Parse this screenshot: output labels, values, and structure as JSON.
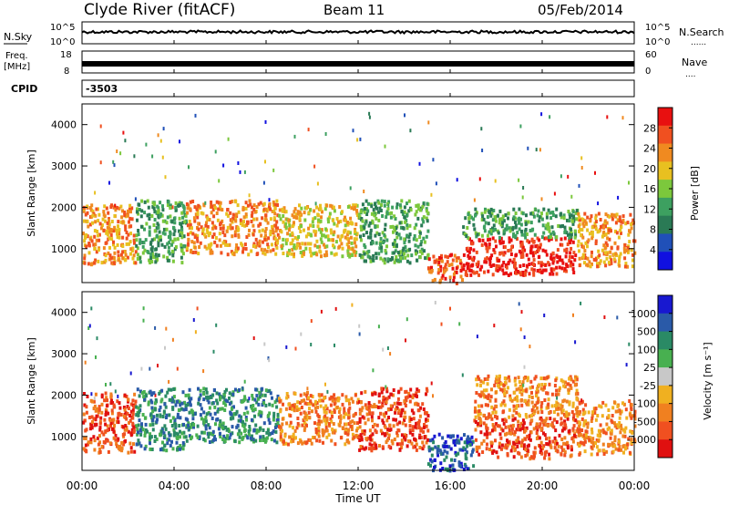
{
  "header": {
    "station": "Clyde River (fitACF)",
    "beam": "Beam 11",
    "date": "05/Feb/2014"
  },
  "nsky_panel": {
    "left_label": "N.Sky",
    "right_label": "N.Search",
    "tick_top": "10^5",
    "tick_bottom": "10^0",
    "right_tick_top": "10^5",
    "right_tick_bottom": "10^0",
    "legend_symbol": "......"
  },
  "freq_panel": {
    "left_label_line1": "Freq.",
    "left_label_line2": "[MHz]",
    "right_label": "Nave",
    "left_ticks": [
      "18",
      "8"
    ],
    "right_ticks": [
      "60",
      "0"
    ],
    "legend_symbol": "....",
    "freq_mhz": 10.5,
    "nave": 32
  },
  "cpid": {
    "label": "CPID",
    "value": "-3503"
  },
  "time_axis": {
    "label": "Time UT",
    "ticks": [
      "00:00",
      "04:00",
      "08:00",
      "12:00",
      "16:00",
      "20:00",
      "00:00"
    ]
  },
  "colors": {
    "power": [
      "#1010e0",
      "#2050b8",
      "#2a7a55",
      "#3da060",
      "#7cc83c",
      "#e8c020",
      "#f08a20",
      "#f05020",
      "#e81010"
    ],
    "velocity": [
      "#1818d0",
      "#2a5aa8",
      "#2a8a65",
      "#48b050",
      "#c8c8c8",
      "#f0b020",
      "#f08020",
      "#f05020",
      "#e01010"
    ]
  },
  "chart_data": [
    {
      "type": "heatmap",
      "panel": "power",
      "ylabel": "Slant Range [km]",
      "yticks": [
        "4000",
        "3000",
        "2000",
        "1000"
      ],
      "ylim": [
        180,
        4500
      ],
      "xlim_hours": [
        0,
        24
      ],
      "colorbar_label": "Power [dB]",
      "colorbar_ticks": [
        "28",
        "24",
        "20",
        "16",
        "12",
        "8",
        "4"
      ],
      "colorbar_range": [
        0,
        32
      ],
      "scatter_bands": [
        {
          "t_start": 0.0,
          "t_end": 2.3,
          "r_low": 650,
          "r_high": 2100,
          "value": 22
        },
        {
          "t_start": 2.3,
          "t_end": 4.5,
          "r_low": 700,
          "r_high": 2200,
          "value": 14
        },
        {
          "t_start": 4.5,
          "t_end": 8.5,
          "r_low": 900,
          "r_high": 2200,
          "value": 24
        },
        {
          "t_start": 8.5,
          "t_end": 12.0,
          "r_low": 850,
          "r_high": 2100,
          "value": 18
        },
        {
          "t_start": 12.0,
          "t_end": 15.0,
          "r_low": 700,
          "r_high": 2200,
          "value": 14
        },
        {
          "t_start": 15.0,
          "t_end": 16.5,
          "r_low": 200,
          "r_high": 900,
          "value": 26
        },
        {
          "t_start": 16.5,
          "t_end": 21.5,
          "r_low": 400,
          "r_high": 1300,
          "value": 30
        },
        {
          "t_start": 16.5,
          "t_end": 21.5,
          "r_low": 1300,
          "r_high": 2000,
          "value": 12
        },
        {
          "t_start": 21.5,
          "t_end": 24.0,
          "r_low": 600,
          "r_high": 1900,
          "value": 22
        }
      ]
    },
    {
      "type": "heatmap",
      "panel": "velocity",
      "ylabel": "Slant Range [km]",
      "yticks": [
        "4000",
        "3000",
        "2000",
        "1000"
      ],
      "ylim": [
        180,
        4500
      ],
      "xlim_hours": [
        0,
        24
      ],
      "colorbar_label": "Velocity [m s⁻¹]",
      "colorbar_ticks": [
        "1000",
        "500",
        "100",
        "25",
        "-25",
        "-100",
        "-500",
        "-1000"
      ],
      "scatter_bands": [
        {
          "t_start": 0.0,
          "t_end": 2.3,
          "r_low": 650,
          "r_high": 2100,
          "value": -300
        },
        {
          "t_start": 2.3,
          "t_end": 4.5,
          "r_low": 700,
          "r_high": 2200,
          "value": 80
        },
        {
          "t_start": 4.5,
          "t_end": 8.5,
          "r_low": 900,
          "r_high": 2200,
          "value": 120
        },
        {
          "t_start": 8.5,
          "t_end": 12.0,
          "r_low": 850,
          "r_high": 2100,
          "value": -200
        },
        {
          "t_start": 12.0,
          "t_end": 15.0,
          "r_low": 700,
          "r_high": 2200,
          "value": -400
        },
        {
          "t_start": 15.0,
          "t_end": 17.0,
          "r_low": 200,
          "r_high": 1100,
          "value": 600
        },
        {
          "t_start": 17.0,
          "t_end": 21.5,
          "r_low": 500,
          "r_high": 1500,
          "value": -350
        },
        {
          "t_start": 17.0,
          "t_end": 21.5,
          "r_low": 1500,
          "r_high": 2500,
          "value": -120
        },
        {
          "t_start": 21.5,
          "t_end": 24.0,
          "r_low": 600,
          "r_high": 1900,
          "value": -250
        }
      ]
    }
  ]
}
